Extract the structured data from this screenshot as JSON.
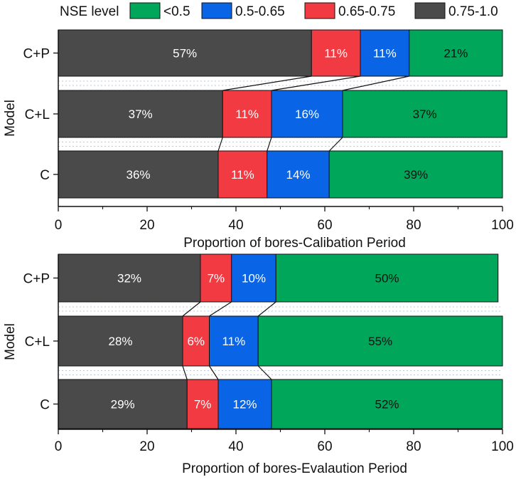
{
  "legend": {
    "title": "NSE level",
    "items": [
      {
        "label": "<0.5",
        "color": "#00A65A"
      },
      {
        "label": "0.5-0.65",
        "color": "#0A64E6"
      },
      {
        "label": "0.65-0.75",
        "color": "#F23A43"
      },
      {
        "label": "0.75-1.0",
        "color": "#4A4A4A"
      }
    ]
  },
  "chart_data": [
    {
      "type": "bar",
      "orientation": "horizontal",
      "stacked": true,
      "title": "",
      "xlabel": "Proportion of bores-Calibation Period",
      "ylabel": "Model",
      "xlim": [
        0,
        100
      ],
      "xticks": [
        0,
        20,
        40,
        60,
        80,
        100
      ],
      "categories": [
        "C+P",
        "C+L",
        "C"
      ],
      "series": [
        {
          "name": "0.75-1.0",
          "color": "#4A4A4A",
          "label_color": "#ffffff",
          "values": [
            57,
            37,
            36
          ],
          "labels": [
            "57%",
            "37%",
            "36%"
          ]
        },
        {
          "name": "0.65-0.75",
          "color": "#F23A43",
          "label_color": "#ffffff",
          "values": [
            11,
            11,
            11
          ],
          "labels": [
            "11%",
            "11%",
            "11%"
          ]
        },
        {
          "name": "0.5-0.65",
          "color": "#0A64E6",
          "label_color": "#ffffff",
          "values": [
            11,
            16,
            14
          ],
          "labels": [
            "11%",
            "16%",
            "14%"
          ]
        },
        {
          "name": "<0.5",
          "color": "#00A65A",
          "label_color": "#111111",
          "values": [
            21,
            37,
            39
          ],
          "labels": [
            "21%",
            "37%",
            "39%"
          ]
        }
      ]
    },
    {
      "type": "bar",
      "orientation": "horizontal",
      "stacked": true,
      "title": "",
      "xlabel": "Proportion of bores-Evalaution Period",
      "ylabel": "Model",
      "xlim": [
        0,
        100
      ],
      "xticks": [
        0,
        20,
        40,
        60,
        80,
        100
      ],
      "categories": [
        "C+P",
        "C+L",
        "C"
      ],
      "series": [
        {
          "name": "0.75-1.0",
          "color": "#4A4A4A",
          "label_color": "#ffffff",
          "values": [
            32,
            28,
            29
          ],
          "labels": [
            "32%",
            "28%",
            "29%"
          ]
        },
        {
          "name": "0.65-0.75",
          "color": "#F23A43",
          "label_color": "#ffffff",
          "values": [
            7,
            6,
            7
          ],
          "labels": [
            "7%",
            "6%",
            "7%"
          ]
        },
        {
          "name": "0.5-0.65",
          "color": "#0A64E6",
          "label_color": "#ffffff",
          "values": [
            10,
            11,
            12
          ],
          "labels": [
            "10%",
            "11%",
            "12%"
          ]
        },
        {
          "name": "<0.5",
          "color": "#00A65A",
          "label_color": "#111111",
          "values": [
            50,
            55,
            52
          ],
          "labels": [
            "50%",
            "55%",
            "52%"
          ]
        }
      ]
    }
  ]
}
